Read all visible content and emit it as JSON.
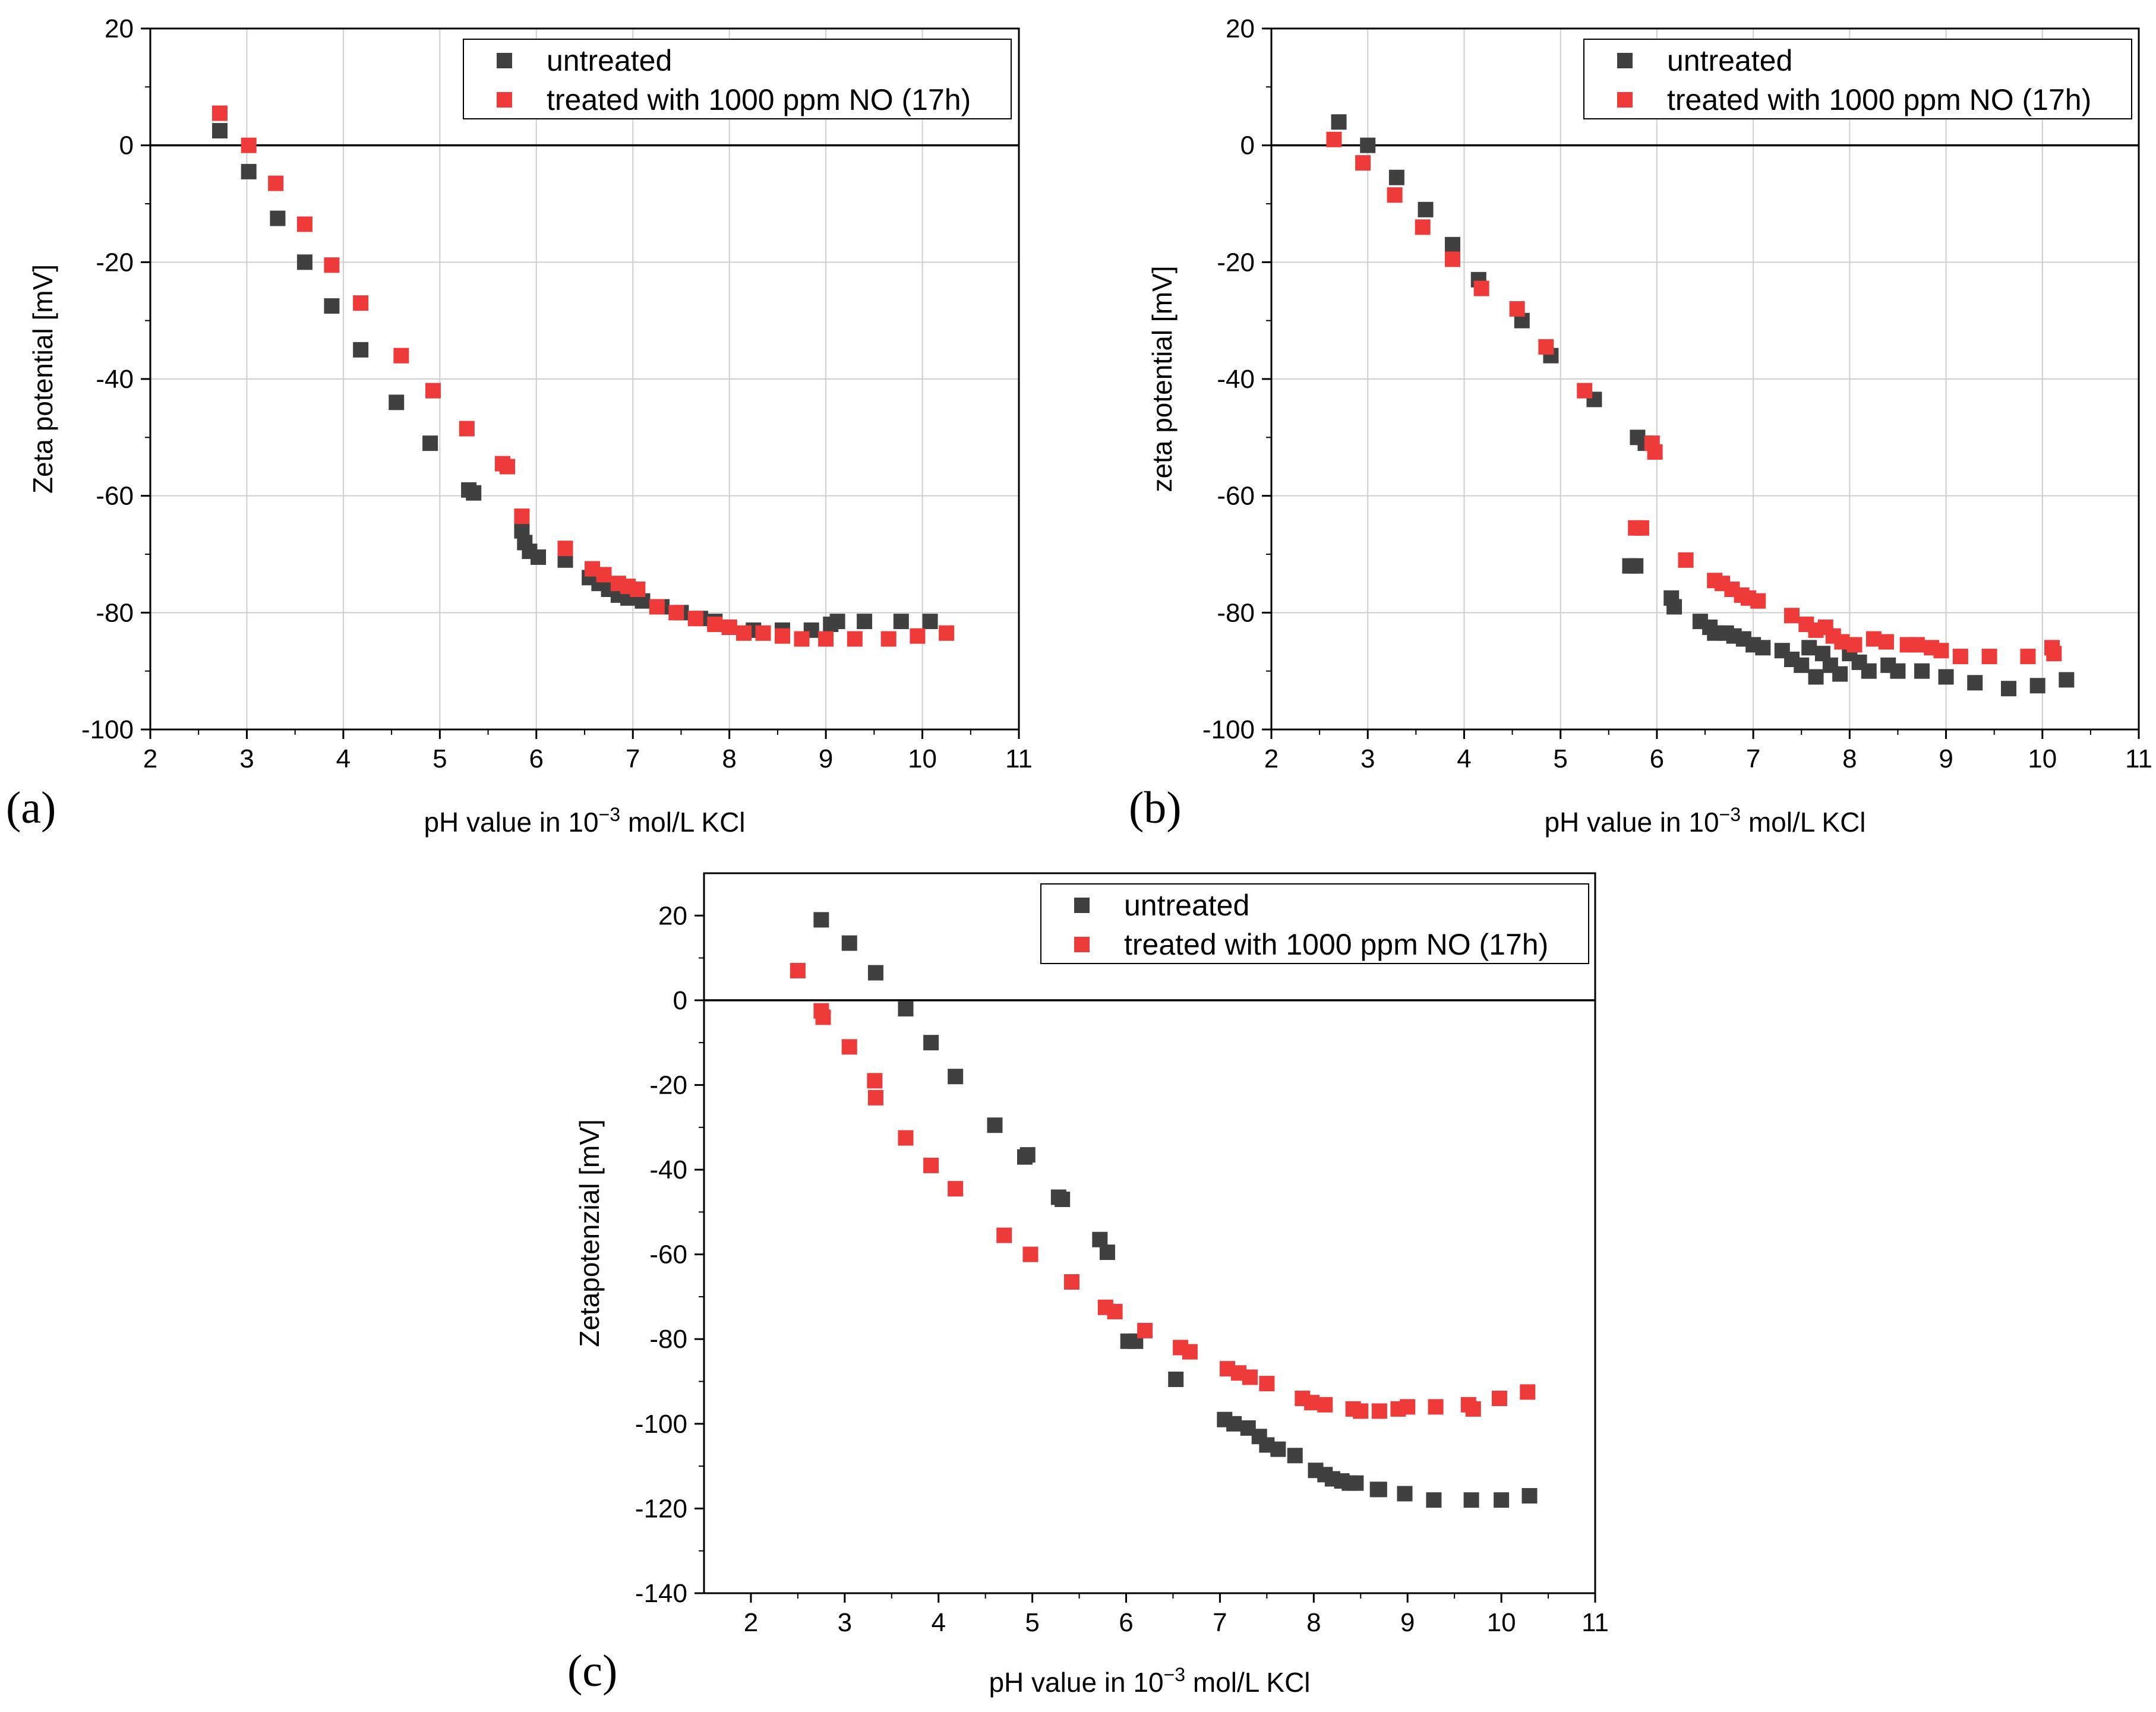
{
  "chart_data": [
    {
      "type": "scatter",
      "panel_label": "(a)",
      "xlabel": "pH value in 10",
      "xlabel_sup": "−3",
      "xlabel_tail": " mol/L KCl",
      "ylabel": "Zeta potential [mV]",
      "xlim": [
        2,
        11
      ],
      "ylim": [
        -100,
        20
      ],
      "xticks": [
        2,
        3,
        4,
        5,
        6,
        7,
        8,
        9,
        10,
        11
      ],
      "yticks": [
        -100,
        -80,
        -60,
        -40,
        -20,
        0,
        20
      ],
      "grid": true,
      "zero_line": true,
      "legend_position": "top-right",
      "series": [
        {
          "name": "untreated",
          "color": "#404040",
          "points": [
            [
              2.72,
              2.5
            ],
            [
              3.02,
              -4.5
            ],
            [
              3.32,
              -12.5
            ],
            [
              3.6,
              -20
            ],
            [
              3.88,
              -27.5
            ],
            [
              4.18,
              -35
            ],
            [
              4.55,
              -44
            ],
            [
              4.9,
              -51
            ],
            [
              5.3,
              -59
            ],
            [
              5.35,
              -59.5
            ],
            [
              5.85,
              -66
            ],
            [
              5.88,
              -68
            ],
            [
              5.93,
              -69.5
            ],
            [
              6.02,
              -70.5
            ],
            [
              6.3,
              -71
            ],
            [
              6.55,
              -74
            ],
            [
              6.65,
              -75
            ],
            [
              6.75,
              -76
            ],
            [
              6.85,
              -77
            ],
            [
              6.95,
              -77.5
            ],
            [
              7.1,
              -78
            ],
            [
              7.3,
              -79
            ],
            [
              7.5,
              -80
            ],
            [
              7.7,
              -81
            ],
            [
              7.85,
              -81.5
            ],
            [
              8.0,
              -82.5
            ],
            [
              8.25,
              -83
            ],
            [
              8.55,
              -83
            ],
            [
              8.85,
              -83
            ],
            [
              9.05,
              -82
            ],
            [
              9.12,
              -81.5
            ],
            [
              9.4,
              -81.5
            ],
            [
              9.78,
              -81.5
            ],
            [
              10.08,
              -81.5
            ]
          ]
        },
        {
          "name": "treated with 1000 ppm NO (17h)",
          "color": "#ef3a3a",
          "points": [
            [
              2.72,
              5.5
            ],
            [
              3.02,
              0
            ],
            [
              3.3,
              -6.5
            ],
            [
              3.6,
              -13.5
            ],
            [
              3.88,
              -20.5
            ],
            [
              4.18,
              -27
            ],
            [
              4.6,
              -36
            ],
            [
              4.93,
              -42
            ],
            [
              5.28,
              -48.5
            ],
            [
              5.65,
              -54.5
            ],
            [
              5.7,
              -55
            ],
            [
              5.85,
              -63.5
            ],
            [
              6.3,
              -69
            ],
            [
              6.58,
              -72.5
            ],
            [
              6.7,
              -73.5
            ],
            [
              6.85,
              -75
            ],
            [
              6.95,
              -75.5
            ],
            [
              7.05,
              -76
            ],
            [
              7.25,
              -79
            ],
            [
              7.45,
              -80
            ],
            [
              7.65,
              -81
            ],
            [
              7.85,
              -82
            ],
            [
              8.0,
              -82.5
            ],
            [
              8.15,
              -83.5
            ],
            [
              8.35,
              -83.5
            ],
            [
              8.55,
              -84
            ],
            [
              8.75,
              -84.5
            ],
            [
              9.0,
              -84.5
            ],
            [
              9.3,
              -84.5
            ],
            [
              9.65,
              -84.5
            ],
            [
              9.95,
              -84
            ],
            [
              10.25,
              -83.5
            ]
          ]
        }
      ]
    },
    {
      "type": "scatter",
      "panel_label": "(b)",
      "xlabel": "pH value in 10",
      "xlabel_sup": "−3",
      "xlabel_tail": " mol/L KCl",
      "ylabel": "zeta potential [mV]",
      "xlim": [
        2,
        11
      ],
      "ylim": [
        -100,
        20
      ],
      "xticks": [
        2,
        3,
        4,
        5,
        6,
        7,
        8,
        9,
        10,
        11
      ],
      "yticks": [
        -100,
        -80,
        -60,
        -40,
        -20,
        0,
        20
      ],
      "grid": true,
      "zero_line": true,
      "legend_position": "top-right",
      "series": [
        {
          "name": "untreated",
          "color": "#404040",
          "points": [
            [
              2.7,
              4
            ],
            [
              3.0,
              0
            ],
            [
              3.3,
              -5.5
            ],
            [
              3.6,
              -11
            ],
            [
              3.88,
              -17
            ],
            [
              4.15,
              -23
            ],
            [
              4.6,
              -30
            ],
            [
              4.9,
              -36
            ],
            [
              5.35,
              -43.5
            ],
            [
              5.8,
              -50
            ],
            [
              5.88,
              -51
            ],
            [
              5.72,
              -72
            ],
            [
              5.78,
              -72
            ],
            [
              6.15,
              -77.5
            ],
            [
              6.18,
              -79
            ],
            [
              6.45,
              -81.5
            ],
            [
              6.55,
              -82.5
            ],
            [
              6.6,
              -83.5
            ],
            [
              6.72,
              -83.5
            ],
            [
              6.8,
              -84
            ],
            [
              6.9,
              -84.5
            ],
            [
              7.0,
              -85.5
            ],
            [
              7.1,
              -86
            ],
            [
              7.3,
              -86.5
            ],
            [
              7.4,
              -88
            ],
            [
              7.5,
              -89
            ],
            [
              7.58,
              -86
            ],
            [
              7.65,
              -91
            ],
            [
              7.72,
              -87
            ],
            [
              7.8,
              -89
            ],
            [
              7.9,
              -90.5
            ],
            [
              8.0,
              -87
            ],
            [
              8.1,
              -88.5
            ],
            [
              8.2,
              -90
            ],
            [
              8.4,
              -89
            ],
            [
              8.5,
              -90
            ],
            [
              8.75,
              -90
            ],
            [
              9.0,
              -91
            ],
            [
              9.3,
              -92
            ],
            [
              9.65,
              -93
            ],
            [
              9.95,
              -92.5
            ],
            [
              10.25,
              -91.5
            ]
          ]
        },
        {
          "name": "treated with 1000 ppm NO (17h)",
          "color": "#ef3a3a",
          "points": [
            [
              2.65,
              1
            ],
            [
              2.95,
              -3
            ],
            [
              3.28,
              -8.5
            ],
            [
              3.57,
              -14
            ],
            [
              3.88,
              -19.5
            ],
            [
              4.18,
              -24.5
            ],
            [
              4.55,
              -28
            ],
            [
              4.85,
              -34.5
            ],
            [
              5.25,
              -42
            ],
            [
              5.78,
              -65.5
            ],
            [
              5.84,
              -65.5
            ],
            [
              5.95,
              -51
            ],
            [
              5.98,
              -52.5
            ],
            [
              6.3,
              -71
            ],
            [
              6.6,
              -74.5
            ],
            [
              6.68,
              -75
            ],
            [
              6.78,
              -76
            ],
            [
              6.88,
              -77
            ],
            [
              6.95,
              -77.5
            ],
            [
              7.05,
              -78
            ],
            [
              7.4,
              -80.5
            ],
            [
              7.55,
              -82
            ],
            [
              7.65,
              -83
            ],
            [
              7.75,
              -82.5
            ],
            [
              7.83,
              -84
            ],
            [
              7.92,
              -85
            ],
            [
              8.05,
              -85.5
            ],
            [
              8.25,
              -84.5
            ],
            [
              8.38,
              -85
            ],
            [
              8.6,
              -85.5
            ],
            [
              8.7,
              -85.5
            ],
            [
              8.85,
              -86
            ],
            [
              8.95,
              -86.5
            ],
            [
              9.15,
              -87.5
            ],
            [
              9.45,
              -87.5
            ],
            [
              9.85,
              -87.5
            ],
            [
              10.1,
              -86
            ],
            [
              10.12,
              -87
            ]
          ]
        }
      ]
    },
    {
      "type": "scatter",
      "panel_label": "(c)",
      "xlabel": "pH value in 10",
      "xlabel_sup": "−3",
      "xlabel_tail": " mol/L KCl",
      "ylabel": "Zetapotenzial [mV]",
      "xlim": [
        1.5,
        11
      ],
      "ylim": [
        -140,
        30
      ],
      "xticks": [
        2,
        3,
        4,
        5,
        6,
        7,
        8,
        9,
        10,
        11
      ],
      "yticks": [
        -140,
        -120,
        -100,
        -80,
        -60,
        -40,
        -20,
        0,
        20
      ],
      "grid": false,
      "zero_line": true,
      "legend_position": "top-right",
      "series": [
        {
          "name": "untreated",
          "color": "#404040",
          "points": [
            [
              2.75,
              19
            ],
            [
              3.05,
              13.5
            ],
            [
              3.33,
              6.5
            ],
            [
              3.65,
              -2
            ],
            [
              3.92,
              -10
            ],
            [
              4.18,
              -18
            ],
            [
              4.6,
              -29.5
            ],
            [
              4.92,
              -37
            ],
            [
              4.95,
              -36.5
            ],
            [
              5.28,
              -46.5
            ],
            [
              5.32,
              -47
            ],
            [
              5.72,
              -56.5
            ],
            [
              5.8,
              -59.5
            ],
            [
              6.02,
              -80.5
            ],
            [
              6.1,
              -80.5
            ],
            [
              6.53,
              -89.5
            ],
            [
              7.05,
              -99
            ],
            [
              7.15,
              -100
            ],
            [
              7.3,
              -101
            ],
            [
              7.42,
              -103
            ],
            [
              7.5,
              -105
            ],
            [
              7.62,
              -106
            ],
            [
              7.8,
              -107.5
            ],
            [
              8.02,
              -111
            ],
            [
              8.12,
              -112
            ],
            [
              8.2,
              -113
            ],
            [
              8.3,
              -113.5
            ],
            [
              8.38,
              -114
            ],
            [
              8.45,
              -114
            ],
            [
              8.68,
              -115.5
            ],
            [
              8.7,
              -115.5
            ],
            [
              8.97,
              -116.5
            ],
            [
              9.28,
              -118
            ],
            [
              9.68,
              -118
            ],
            [
              10.0,
              -118
            ],
            [
              10.3,
              -117
            ]
          ]
        },
        {
          "name": "treated with 1000 ppm NO (17h)",
          "color": "#ef3a3a",
          "points": [
            [
              2.5,
              7
            ],
            [
              2.75,
              -2.5
            ],
            [
              2.77,
              -4
            ],
            [
              3.05,
              -11
            ],
            [
              3.32,
              -19
            ],
            [
              3.33,
              -23
            ],
            [
              3.65,
              -32.5
            ],
            [
              3.92,
              -39
            ],
            [
              4.18,
              -44.5
            ],
            [
              4.7,
              -55.5
            ],
            [
              4.98,
              -60
            ],
            [
              5.42,
              -66.5
            ],
            [
              5.78,
              -72.5
            ],
            [
              5.88,
              -73.5
            ],
            [
              6.2,
              -78
            ],
            [
              6.58,
              -82
            ],
            [
              6.68,
              -83
            ],
            [
              7.08,
              -87
            ],
            [
              7.2,
              -88
            ],
            [
              7.32,
              -89
            ],
            [
              7.5,
              -90.5
            ],
            [
              7.88,
              -94
            ],
            [
              7.98,
              -95
            ],
            [
              8.12,
              -95.5
            ],
            [
              8.42,
              -96.5
            ],
            [
              8.5,
              -97
            ],
            [
              8.7,
              -97
            ],
            [
              8.9,
              -96.5
            ],
            [
              9.0,
              -96
            ],
            [
              9.3,
              -96
            ],
            [
              9.65,
              -95.5
            ],
            [
              9.7,
              -96.5
            ],
            [
              9.98,
              -94
            ],
            [
              10.28,
              -92.5
            ]
          ]
        }
      ]
    }
  ]
}
